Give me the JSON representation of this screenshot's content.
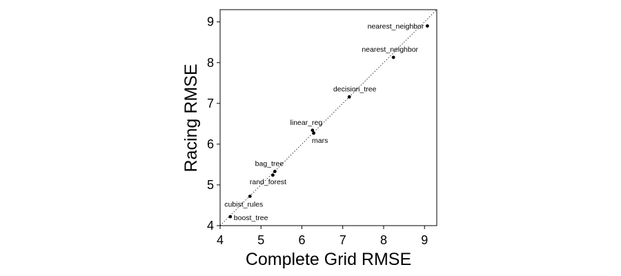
{
  "chart_data": {
    "type": "scatter",
    "xlabel": "Complete Grid RMSE",
    "ylabel": "Racing RMSE",
    "xlim": [
      4,
      9.3
    ],
    "ylim": [
      4,
      9.3
    ],
    "xticks": [
      "4",
      "5",
      "6",
      "7",
      "8",
      "9"
    ],
    "yticks": [
      "4",
      "5",
      "6",
      "7",
      "8",
      "9"
    ],
    "reference_line": "y = x (dotted)",
    "grid": false,
    "points": [
      {
        "label": "nearest_neighbor",
        "x": 9.07,
        "y": 8.9
      },
      {
        "label": "nearest_neighbor",
        "x": 8.24,
        "y": 8.13
      },
      {
        "label": "decision_tree",
        "x": 7.16,
        "y": 7.16
      },
      {
        "label": "linear_reg",
        "x": 6.26,
        "y": 6.34
      },
      {
        "label": "mars",
        "x": 6.29,
        "y": 6.27
      },
      {
        "label": "bag_tree",
        "x": 5.34,
        "y": 5.33
      },
      {
        "label": "rand_forest",
        "x": 5.29,
        "y": 5.24
      },
      {
        "label": "cubist_rules",
        "x": 4.73,
        "y": 4.72
      },
      {
        "label": "boost_tree",
        "x": 4.25,
        "y": 4.22
      }
    ]
  }
}
